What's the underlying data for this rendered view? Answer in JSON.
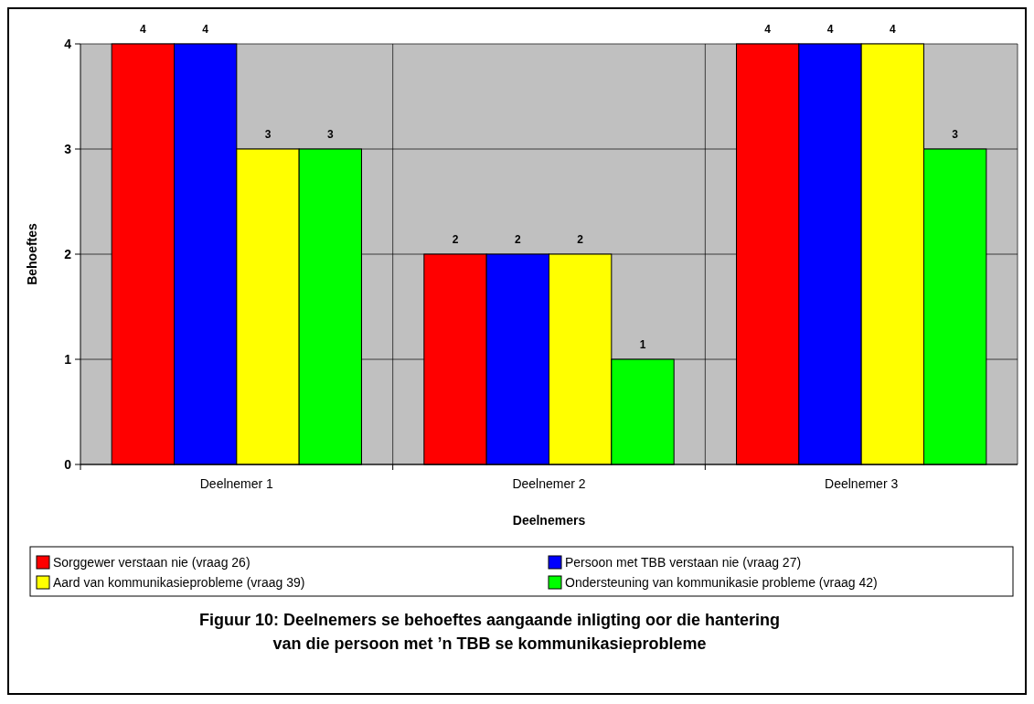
{
  "chart_data": {
    "type": "bar",
    "title": "Figuur 10:  Deelnemers se behoeftes aangaande inligting oor die hantering van die persoon met ’n TBB se kommunikasieprobleme",
    "xlabel": "Deelnemers",
    "ylabel": "Behoeftes",
    "categories": [
      "Deelnemer 1",
      "Deelnemer 2",
      "Deelnemer 3"
    ],
    "series": [
      {
        "name": "Sorggewer verstaan nie (vraag 26)",
        "color": "#ff0000",
        "values": [
          4,
          2,
          4
        ]
      },
      {
        "name": "Persoon met TBB verstaan nie (vraag 27)",
        "color": "#0000ff",
        "values": [
          4,
          2,
          4
        ]
      },
      {
        "name": "Aard van kommunikasieprobleme (vraag 39)",
        "color": "#ffff00",
        "values": [
          3,
          2,
          4
        ]
      },
      {
        "name": "Ondersteuning van kommunikasie probleme (vraag 42)",
        "color": "#00ff00",
        "values": [
          3,
          1,
          3
        ]
      }
    ],
    "ylim": [
      0,
      4
    ],
    "yticks": [
      0,
      1,
      2,
      3,
      4
    ],
    "grid": true,
    "legend": "bottom",
    "data_labels": true
  }
}
